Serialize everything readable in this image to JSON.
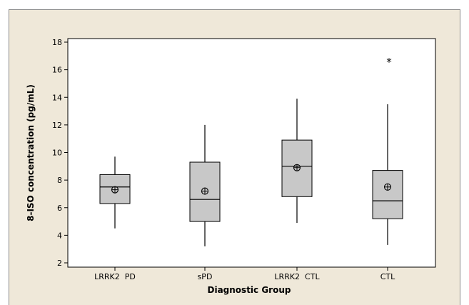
{
  "chart_data": {
    "type": "boxplot",
    "title": "",
    "xlabel": "Diagnostic Group",
    "ylabel": "8-ISO concentration (pg/mL)",
    "ylim": [
      1.7,
      18.5
    ],
    "yticks": [
      2,
      4,
      6,
      8,
      10,
      12,
      14,
      16,
      18
    ],
    "grid": false,
    "categories": [
      "LRRK2  PD",
      "sPD",
      "LRRK2  CTL",
      "CTL"
    ],
    "boxes": [
      {
        "category": "LRRK2  PD",
        "whisker_low": 4.5,
        "q1": 6.3,
        "median": 7.5,
        "q3": 8.4,
        "whisker_high": 9.7,
        "mean": 7.3,
        "outliers": []
      },
      {
        "category": "sPD",
        "whisker_low": 3.2,
        "q1": 5.0,
        "median": 6.6,
        "q3": 9.3,
        "whisker_high": 12.0,
        "mean": 7.2,
        "outliers": []
      },
      {
        "category": "LRRK2  CTL",
        "whisker_low": 4.9,
        "q1": 6.8,
        "median": 9.0,
        "q3": 10.9,
        "whisker_high": 13.9,
        "mean": 8.9,
        "outliers": []
      },
      {
        "category": "CTL",
        "whisker_low": 3.3,
        "q1": 5.2,
        "median": 6.5,
        "q3": 8.7,
        "whisker_high": 13.5,
        "mean": 7.5,
        "outliers": [
          16.7
        ]
      }
    ],
    "colors": {
      "box_fill": "#c8c8c8",
      "frame_bg": "#efe8d9",
      "plot_bg": "#ffffff",
      "line": "#000000"
    },
    "outlier_marker": "*"
  }
}
